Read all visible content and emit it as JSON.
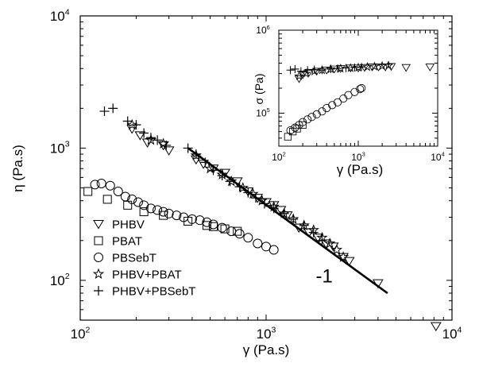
{
  "chart_data": [
    {
      "type": "scatter",
      "xscale": "log",
      "yscale": "log",
      "xlim": [
        100,
        10000
      ],
      "ylim": [
        50,
        10000
      ],
      "xlabel": "γ̇ (Pa.s)",
      "ylabel": "η (Pa.s)",
      "xticks": [
        {
          "v": 100,
          "b": "10",
          "e": "2"
        },
        {
          "v": 1000,
          "b": "10",
          "e": "3"
        },
        {
          "v": 10000,
          "b": "10",
          "e": "4"
        }
      ],
      "yticks": [
        {
          "v": 100,
          "b": "10",
          "e": "2"
        },
        {
          "v": 1000,
          "b": "10",
          "e": "3"
        },
        {
          "v": 10000,
          "b": "10",
          "e": "4"
        }
      ],
      "series": [
        {
          "name": "PHBV",
          "marker": "triangle-down",
          "points": [
            [
              190,
              1400
            ],
            [
              210,
              1250
            ],
            [
              230,
              1100
            ],
            [
              280,
              1050
            ],
            [
              300,
              960
            ],
            [
              420,
              820
            ],
            [
              460,
              760
            ],
            [
              520,
              700
            ],
            [
              600,
              650
            ],
            [
              700,
              560
            ],
            [
              800,
              470
            ],
            [
              900,
              420
            ],
            [
              1000,
              390
            ],
            [
              1100,
              370
            ],
            [
              1200,
              340
            ],
            [
              1300,
              310
            ],
            [
              1500,
              250
            ],
            [
              1700,
              230
            ],
            [
              1900,
              210
            ],
            [
              2100,
              190
            ],
            [
              2300,
              180
            ],
            [
              2600,
              150
            ],
            [
              2800,
              140
            ],
            [
              4000,
              95
            ],
            [
              8200,
              45
            ]
          ]
        },
        {
          "name": "PBAT",
          "marker": "square",
          "points": [
            [
              110,
              470
            ],
            [
              140,
              410
            ],
            [
              180,
              370
            ],
            [
              220,
              330
            ],
            [
              280,
              310
            ],
            [
              380,
              280
            ],
            [
              480,
              260
            ],
            [
              520,
              255
            ],
            [
              600,
              245
            ],
            [
              700,
              235
            ]
          ]
        },
        {
          "name": "PBSebT",
          "marker": "circle",
          "points": [
            [
              120,
              530
            ],
            [
              130,
              540
            ],
            [
              145,
              520
            ],
            [
              160,
              470
            ],
            [
              175,
              430
            ],
            [
              190,
              410
            ],
            [
              205,
              390
            ],
            [
              220,
              370
            ],
            [
              240,
              350
            ],
            [
              260,
              340
            ],
            [
              280,
              330
            ],
            [
              300,
              320
            ],
            [
              330,
              310
            ],
            [
              360,
              300
            ],
            [
              400,
              290
            ],
            [
              440,
              285
            ],
            [
              480,
              275
            ],
            [
              520,
              265
            ],
            [
              580,
              250
            ],
            [
              650,
              235
            ],
            [
              720,
              225
            ],
            [
              800,
              210
            ],
            [
              900,
              190
            ],
            [
              1000,
              180
            ],
            [
              1100,
              170
            ]
          ]
        },
        {
          "name": "PHBV+PBAT",
          "marker": "star",
          "points": [
            [
              190,
              1500
            ],
            [
              240,
              1150
            ],
            [
              280,
              1080
            ],
            [
              420,
              880
            ],
            [
              500,
              700
            ],
            [
              580,
              630
            ],
            [
              650,
              560
            ],
            [
              750,
              500
            ],
            [
              850,
              450
            ],
            [
              950,
              400
            ],
            [
              1100,
              360
            ],
            [
              1250,
              320
            ],
            [
              1400,
              290
            ],
            [
              1600,
              260
            ],
            [
              1800,
              240
            ],
            [
              2000,
              210
            ],
            [
              2200,
              190
            ],
            [
              2400,
              170
            ],
            [
              2600,
              150
            ]
          ]
        },
        {
          "name": "PHBV+PBSebT",
          "marker": "plus",
          "points": [
            [
              135,
              1900
            ],
            [
              150,
              2000
            ],
            [
              180,
              1600
            ],
            [
              200,
              1500
            ],
            [
              220,
              1300
            ],
            [
              240,
              1200
            ],
            [
              260,
              1150
            ],
            [
              290,
              1050
            ],
            [
              380,
              1000
            ],
            [
              420,
              900
            ],
            [
              470,
              780
            ],
            [
              520,
              680
            ],
            [
              580,
              620
            ],
            [
              640,
              560
            ],
            [
              720,
              510
            ],
            [
              800,
              460
            ],
            [
              880,
              420
            ],
            [
              980,
              380
            ],
            [
              1100,
              350
            ],
            [
              1250,
              320
            ],
            [
              1400,
              290
            ],
            [
              1600,
              260
            ],
            [
              1800,
              230
            ],
            [
              2000,
              200
            ]
          ]
        }
      ],
      "fit_line": {
        "x": [
          380,
          4500
        ],
        "y": [
          1000,
          80
        ]
      },
      "annotations": [
        {
          "text": "-1",
          "x": 1850,
          "y": 108
        }
      ]
    },
    {
      "type": "scatter",
      "xscale": "log",
      "yscale": "log",
      "xlim": [
        100,
        10000
      ],
      "ylim": [
        40000,
        1000000
      ],
      "xlabel": "γ̇ (Pa.s)",
      "ylabel": "σ (Pa)",
      "xticks": [
        {
          "v": 100,
          "b": "10",
          "e": "2"
        },
        {
          "v": 1000,
          "b": "10",
          "e": "3"
        },
        {
          "v": 10000,
          "b": "10",
          "e": "4"
        }
      ],
      "yticks": [
        {
          "v": 100000,
          "b": "10",
          "e": "5"
        },
        {
          "v": 1000000,
          "b": "10",
          "e": "6"
        }
      ],
      "series": [
        {
          "name": "PHBV",
          "marker": "triangle-down",
          "points": [
            [
              180,
              260000
            ],
            [
              200,
              290000
            ],
            [
              240,
              310000
            ],
            [
              300,
              320000
            ],
            [
              400,
              330000
            ],
            [
              500,
              340000
            ],
            [
              600,
              345000
            ],
            [
              800,
              350000
            ],
            [
              1000,
              350000
            ],
            [
              1200,
              355000
            ],
            [
              1500,
              360000
            ],
            [
              1800,
              360000
            ],
            [
              2200,
              360000
            ],
            [
              2600,
              365000
            ],
            [
              4000,
              355000
            ],
            [
              8000,
              360000
            ]
          ]
        },
        {
          "name": "PBAT",
          "marker": "square",
          "points": [
            [
              130,
              52000
            ],
            [
              150,
              60000
            ],
            [
              170,
              65000
            ],
            [
              200,
              72000
            ]
          ]
        },
        {
          "name": "PBSebT",
          "marker": "circle",
          "points": [
            [
              140,
              62000
            ],
            [
              160,
              67000
            ],
            [
              180,
              72000
            ],
            [
              200,
              78000
            ],
            [
              230,
              84000
            ],
            [
              260,
              90000
            ],
            [
              300,
              97000
            ],
            [
              350,
              105000
            ],
            [
              400,
              115000
            ],
            [
              470,
              125000
            ],
            [
              550,
              135000
            ],
            [
              650,
              150000
            ],
            [
              750,
              165000
            ],
            [
              900,
              180000
            ],
            [
              1050,
              195000
            ],
            [
              1100,
              200000
            ]
          ]
        },
        {
          "name": "PHBV+PBAT",
          "marker": "star",
          "points": [
            [
              180,
              280000
            ],
            [
              220,
              300000
            ],
            [
              280,
              320000
            ],
            [
              350,
              330000
            ],
            [
              450,
              340000
            ],
            [
              600,
              345000
            ],
            [
              800,
              350000
            ],
            [
              1000,
              355000
            ],
            [
              1300,
              360000
            ],
            [
              1600,
              365000
            ],
            [
              2000,
              370000
            ],
            [
              2400,
              375000
            ]
          ]
        },
        {
          "name": "PHBV+PBSebT",
          "marker": "plus",
          "points": [
            [
              140,
              330000
            ],
            [
              160,
              340000
            ],
            [
              190,
              320000
            ],
            [
              230,
              330000
            ],
            [
              280,
              335000
            ],
            [
              350,
              330000
            ],
            [
              450,
              340000
            ],
            [
              550,
              345000
            ],
            [
              700,
              350000
            ],
            [
              900,
              355000
            ],
            [
              1100,
              360000
            ]
          ]
        }
      ]
    }
  ]
}
